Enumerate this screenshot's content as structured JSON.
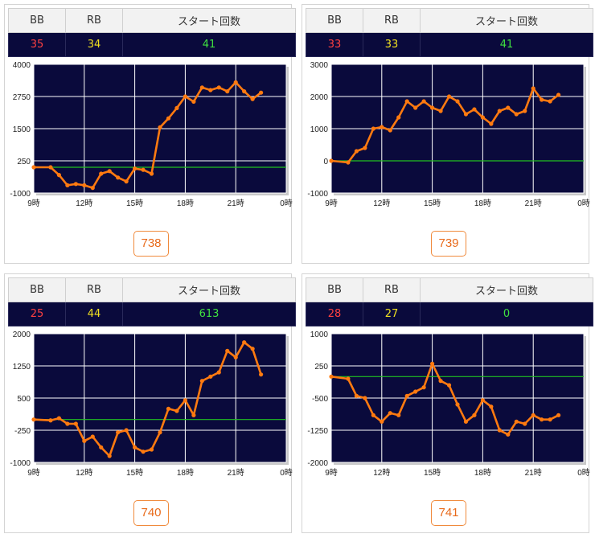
{
  "headers": {
    "bb": "BB",
    "rb": "RB",
    "start": "スタート回数"
  },
  "colors": {
    "bb": "#ff4040",
    "rb": "#f0e020",
    "start": "#40e040",
    "line": "#ff7a10",
    "baseline": "#20c020",
    "plot_bg": "#0a0a3c"
  },
  "machines": [
    {
      "bb": "35",
      "rb": "34",
      "start": "41",
      "number": "738"
    },
    {
      "bb": "33",
      "rb": "33",
      "start": "41",
      "number": "739"
    },
    {
      "bb": "25",
      "rb": "44",
      "start": "613",
      "number": "740"
    },
    {
      "bb": "28",
      "rb": "27",
      "start": "0",
      "number": "741"
    }
  ],
  "chart_data": [
    {
      "type": "line",
      "x_ticks": [
        "9時",
        "12時",
        "15時",
        "18時",
        "21時",
        "0時"
      ],
      "xlim": [
        9,
        24
      ],
      "ylim": [
        -1000,
        4000
      ],
      "y_ticks": [
        "4000",
        "2750",
        "1500",
        "250",
        "-1000"
      ],
      "baseline": 0,
      "series": [
        {
          "x": [
            9,
            10,
            10.5,
            11,
            11.5,
            12,
            12.5,
            13,
            13.5,
            14,
            14.5,
            15,
            15.5,
            16,
            16.5,
            17,
            17.5,
            18,
            18.5,
            19,
            19.5,
            20,
            20.5,
            21,
            21.5,
            22,
            22.5
          ],
          "y": [
            0,
            0,
            -300,
            -700,
            -650,
            -700,
            -800,
            -250,
            -150,
            -400,
            -550,
            -50,
            -100,
            -250,
            1550,
            1900,
            2300,
            2750,
            2550,
            3100,
            3000,
            3100,
            2950,
            3300,
            2950,
            2650,
            2900
          ]
        }
      ]
    },
    {
      "type": "line",
      "x_ticks": [
        "9時",
        "12時",
        "15時",
        "18時",
        "21時",
        "0時"
      ],
      "xlim": [
        9,
        24
      ],
      "ylim": [
        -1000,
        3000
      ],
      "y_ticks": [
        "3000",
        "2000",
        "1000",
        "0",
        "-1000"
      ],
      "baseline": 0,
      "series": [
        {
          "x": [
            9,
            10,
            10.5,
            11,
            11.5,
            12,
            12.5,
            13,
            13.5,
            14,
            14.5,
            15,
            15.5,
            16,
            16.5,
            17,
            17.5,
            18,
            18.5,
            19,
            19.5,
            20,
            20.5,
            21,
            21.5,
            22,
            22.5
          ],
          "y": [
            0,
            -50,
            300,
            400,
            1000,
            1050,
            950,
            1350,
            1850,
            1650,
            1850,
            1650,
            1550,
            2000,
            1850,
            1450,
            1600,
            1350,
            1150,
            1550,
            1650,
            1450,
            1550,
            2250,
            1900,
            1850,
            2050
          ]
        }
      ]
    },
    {
      "type": "line",
      "x_ticks": [
        "9時",
        "12時",
        "15時",
        "18時",
        "21時",
        "0時"
      ],
      "xlim": [
        9,
        24
      ],
      "ylim": [
        -1000,
        2000
      ],
      "y_ticks": [
        "2000",
        "1250",
        "500",
        "-250",
        "-1000"
      ],
      "baseline": 0,
      "series": [
        {
          "x": [
            9,
            10,
            10.5,
            11,
            11.5,
            12,
            12.5,
            13,
            13.5,
            14,
            14.5,
            15,
            15.5,
            16,
            16.5,
            17,
            17.5,
            18,
            18.5,
            19,
            19.5,
            20,
            20.5,
            21,
            21.5,
            22,
            22.5
          ],
          "y": [
            0,
            -20,
            30,
            -100,
            -100,
            -500,
            -400,
            -650,
            -850,
            -300,
            -250,
            -650,
            -750,
            -700,
            -300,
            250,
            200,
            450,
            100,
            900,
            1000,
            1100,
            1600,
            1450,
            1800,
            1650,
            1050
          ]
        }
      ]
    },
    {
      "type": "line",
      "x_ticks": [
        "9時",
        "12時",
        "15時",
        "18時",
        "21時",
        "0時"
      ],
      "xlim": [
        9,
        24
      ],
      "ylim": [
        -2000,
        1000
      ],
      "y_ticks": [
        "1000",
        "250",
        "-500",
        "-1250",
        "-2000"
      ],
      "baseline": 0,
      "series": [
        {
          "x": [
            9,
            10,
            10.5,
            11,
            11.5,
            12,
            12.5,
            13,
            13.5,
            14,
            14.5,
            15,
            15.5,
            16,
            16.5,
            17,
            17.5,
            18,
            18.5,
            19,
            19.5,
            20,
            20.5,
            21,
            21.5,
            22,
            22.5
          ],
          "y": [
            0,
            -50,
            -450,
            -500,
            -900,
            -1050,
            -850,
            -900,
            -450,
            -350,
            -250,
            300,
            -100,
            -200,
            -650,
            -1050,
            -900,
            -550,
            -700,
            -1250,
            -1350,
            -1050,
            -1100,
            -900,
            -1000,
            -1000,
            -900
          ]
        }
      ]
    }
  ]
}
